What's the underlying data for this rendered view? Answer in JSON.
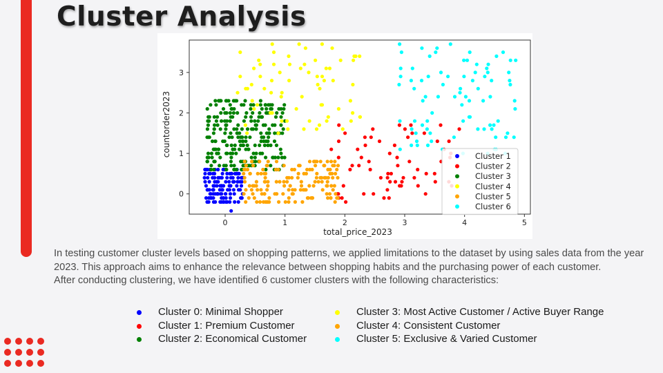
{
  "slide": {
    "title": "Cluster Analysis",
    "accent_color": "#ea2a22",
    "description": [
      "In testing customer cluster levels based on shopping patterns, we applied limitations to the dataset by using sales data from the year 2023. This approach aims to enhance the relevance between shopping habits and the purchasing power of each customer.",
      "After conducting clustering, we have identified 6 customer clusters with the following characteristics:"
    ],
    "clusters_left": [
      {
        "label": "Cluster 0: Minimal Shopper",
        "color": "#0000ff"
      },
      {
        "label": "Cluster 1: Premium Customer",
        "color": "#ff0000"
      },
      {
        "label": "Cluster 2: Economical Customer",
        "color": "#008000"
      }
    ],
    "clusters_right": [
      {
        "label": "Cluster 3: Most Active Customer / Active Buyer Range",
        "color": "#ffff00"
      },
      {
        "label": "Cluster 4: Consistent Customer",
        "color": "#ffa500"
      },
      {
        "label": "Cluster 5: Exclusive & Varied Customer",
        "color": "#00ffff"
      }
    ]
  },
  "chart_data": {
    "type": "scatter",
    "xlabel": "total_price_2023",
    "ylabel": "countorder2023",
    "xlim": [
      -0.6,
      5.1
    ],
    "ylim": [
      -0.5,
      3.8
    ],
    "xticks": [
      0,
      1,
      2,
      3,
      4,
      5
    ],
    "yticks": [
      0,
      1,
      2,
      3
    ],
    "grid": false,
    "legend_position": "bottom-right",
    "series": [
      {
        "name": "Cluster 1",
        "color": "#0000ff",
        "regions": [
          {
            "x": [
              -0.35,
              0.3
            ],
            "y": [
              -0.3,
              0.6
            ]
          }
        ],
        "points": [
          [
            0.1,
            -0.42
          ]
        ]
      },
      {
        "name": "Cluster 2",
        "color": "#ff0000",
        "regions": [
          {
            "x": [
              1.7,
              4.0
            ],
            "y": [
              -0.3,
              1.7
            ]
          }
        ],
        "points": []
      },
      {
        "name": "Cluster 3",
        "color": "#008000",
        "regions": [
          {
            "x": [
              -0.3,
              1.0
            ],
            "y": [
              0.6,
              2.3
            ]
          }
        ],
        "points": []
      },
      {
        "name": "Cluster 4",
        "color": "#ffff00",
        "regions": [
          {
            "x": [
              0.2,
              2.3
            ],
            "y": [
              1.5,
              3.7
            ]
          }
        ],
        "points": []
      },
      {
        "name": "Cluster 5",
        "color": "#ffa500",
        "regions": [
          {
            "x": [
              0.3,
              1.9
            ],
            "y": [
              -0.3,
              0.8
            ]
          }
        ],
        "points": []
      },
      {
        "name": "Cluster 6",
        "color": "#00ffff",
        "regions": [
          {
            "x": [
              2.9,
              4.9
            ],
            "y": [
              1.0,
              3.7
            ]
          }
        ],
        "points": []
      }
    ]
  }
}
